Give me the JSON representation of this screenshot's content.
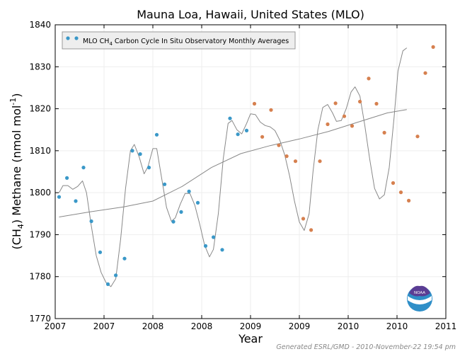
{
  "chart_data": {
    "type": "scatter",
    "title": "Mauna Loa, Hawaii, United States (MLO)",
    "xlabel": "Year",
    "ylabel": "(CH₄) Methane (nmol mol⁻¹)",
    "ylabel_parts": {
      "open": "(CH",
      "sub": "4",
      "close": ") Methane (nmol mol",
      "sup": "-1",
      "end": ")"
    },
    "xlim": [
      2007.0,
      2011.0
    ],
    "ylim": [
      1770,
      1840
    ],
    "xticks": [
      2007.0,
      2007.5,
      2008.0,
      2008.5,
      2009.0,
      2009.5,
      2010.0,
      2010.5,
      2011.0
    ],
    "xtick_labels": [
      "2007",
      "2007",
      "2008",
      "2008",
      "2009",
      "2009",
      "2010",
      "2010",
      "2011"
    ],
    "yticks": [
      1770,
      1780,
      1790,
      1800,
      1810,
      1820,
      1830,
      1840
    ],
    "grid": true,
    "legend": {
      "label_parts": {
        "pre": "MLO CH",
        "sub": "4",
        "post": " Carbon Cycle In Situ Observatory Monthly Averages"
      },
      "placement": "top-left"
    },
    "colors": {
      "early": "#3a98c8",
      "late": "#d6804f",
      "fit": "#888888",
      "trend": "#888888"
    },
    "series": [
      {
        "color_key": "early",
        "points": [
          [
            2007.04,
            1799.0
          ],
          [
            2007.12,
            1803.5
          ],
          [
            2007.21,
            1798.0
          ],
          [
            2007.29,
            1806.0
          ],
          [
            2007.37,
            1793.2
          ],
          [
            2007.46,
            1785.8
          ],
          [
            2007.54,
            1778.2
          ],
          [
            2007.62,
            1780.3
          ],
          [
            2007.71,
            1784.3
          ],
          [
            2007.79,
            1810.0
          ],
          [
            2007.87,
            1809.2
          ],
          [
            2007.96,
            1806.0
          ],
          [
            2008.04,
            1813.8
          ],
          [
            2008.12,
            1802.0
          ],
          [
            2008.21,
            1793.1
          ],
          [
            2008.29,
            1795.4
          ],
          [
            2008.37,
            1800.3
          ],
          [
            2008.46,
            1797.6
          ],
          [
            2008.54,
            1787.3
          ],
          [
            2008.62,
            1789.4
          ],
          [
            2008.71,
            1786.4
          ],
          [
            2008.79,
            1817.7
          ],
          [
            2008.87,
            1813.9
          ],
          [
            2008.96,
            1814.8
          ]
        ]
      },
      {
        "color_key": "late",
        "points": [
          [
            2009.04,
            1821.2
          ],
          [
            2009.12,
            1813.3
          ],
          [
            2009.21,
            1819.7
          ],
          [
            2009.29,
            1811.3
          ],
          [
            2009.37,
            1808.7
          ],
          [
            2009.46,
            1807.5
          ],
          [
            2009.54,
            1793.8
          ],
          [
            2009.62,
            1791.1
          ],
          [
            2009.71,
            1807.5
          ],
          [
            2009.79,
            1816.3
          ],
          [
            2009.87,
            1821.3
          ],
          [
            2009.96,
            1818.2
          ],
          [
            2010.04,
            1815.9
          ],
          [
            2010.12,
            1821.7
          ],
          [
            2010.21,
            1827.2
          ],
          [
            2010.29,
            1821.2
          ],
          [
            2010.37,
            1814.3
          ],
          [
            2010.46,
            1802.3
          ],
          [
            2010.54,
            1800.1
          ],
          [
            2010.62,
            1798.1
          ],
          [
            2010.71,
            1813.4
          ],
          [
            2010.79,
            1828.5
          ],
          [
            2010.87,
            1834.7
          ]
        ]
      }
    ],
    "fit_curve": [
      [
        2007.04,
        1800.0
      ],
      [
        2007.08,
        1801.7
      ],
      [
        2007.13,
        1801.7
      ],
      [
        2007.18,
        1800.8
      ],
      [
        2007.23,
        1801.5
      ],
      [
        2007.28,
        1802.8
      ],
      [
        2007.32,
        1800.0
      ],
      [
        2007.37,
        1792.0
      ],
      [
        2007.42,
        1785.0
      ],
      [
        2007.47,
        1781.0
      ],
      [
        2007.52,
        1778.6
      ],
      [
        2007.57,
        1777.6
      ],
      [
        2007.62,
        1779.5
      ],
      [
        2007.67,
        1789.0
      ],
      [
        2007.72,
        1801.0
      ],
      [
        2007.77,
        1810.0
      ],
      [
        2007.81,
        1811.5
      ],
      [
        2007.86,
        1808.5
      ],
      [
        2007.91,
        1804.5
      ],
      [
        2007.95,
        1806.2
      ],
      [
        2008.0,
        1810.5
      ],
      [
        2008.04,
        1810.5
      ],
      [
        2008.09,
        1803.5
      ],
      [
        2008.14,
        1796.5
      ],
      [
        2008.19,
        1793.2
      ],
      [
        2008.23,
        1794.0
      ],
      [
        2008.28,
        1797.2
      ],
      [
        2008.33,
        1799.8
      ],
      [
        2008.38,
        1799.8
      ],
      [
        2008.43,
        1797.0
      ],
      [
        2008.48,
        1792.5
      ],
      [
        2008.53,
        1787.5
      ],
      [
        2008.58,
        1784.7
      ],
      [
        2008.62,
        1786.5
      ],
      [
        2008.67,
        1795.0
      ],
      [
        2008.72,
        1808.0
      ],
      [
        2008.77,
        1816.5
      ],
      [
        2008.81,
        1817.2
      ],
      [
        2008.86,
        1815.0
      ],
      [
        2008.91,
        1814.0
      ],
      [
        2008.96,
        1816.5
      ],
      [
        2009.0,
        1818.8
      ],
      [
        2009.05,
        1818.6
      ],
      [
        2009.1,
        1816.8
      ],
      [
        2009.15,
        1816.0
      ],
      [
        2009.2,
        1815.7
      ],
      [
        2009.25,
        1814.8
      ],
      [
        2009.3,
        1812.5
      ],
      [
        2009.35,
        1809.0
      ],
      [
        2009.4,
        1804.0
      ],
      [
        2009.45,
        1798.0
      ],
      [
        2009.5,
        1793.0
      ],
      [
        2009.55,
        1791.0
      ],
      [
        2009.6,
        1795.0
      ],
      [
        2009.64,
        1805.0
      ],
      [
        2009.69,
        1815.0
      ],
      [
        2009.74,
        1820.3
      ],
      [
        2009.79,
        1821.0
      ],
      [
        2009.84,
        1819.0
      ],
      [
        2009.88,
        1817.0
      ],
      [
        2009.93,
        1817.2
      ],
      [
        2009.98,
        1820.0
      ],
      [
        2010.03,
        1824.0
      ],
      [
        2010.07,
        1825.2
      ],
      [
        2010.12,
        1823.0
      ],
      [
        2010.17,
        1816.0
      ],
      [
        2010.22,
        1808.0
      ],
      [
        2010.27,
        1801.0
      ],
      [
        2010.32,
        1798.5
      ],
      [
        2010.37,
        1799.5
      ],
      [
        2010.42,
        1806.0
      ],
      [
        2010.47,
        1818.0
      ],
      [
        2010.51,
        1829.0
      ],
      [
        2010.56,
        1833.8
      ],
      [
        2010.6,
        1834.5
      ]
    ],
    "trend_curve": [
      [
        2007.04,
        1794.2
      ],
      [
        2007.35,
        1795.4
      ],
      [
        2007.7,
        1796.6
      ],
      [
        2008.0,
        1798.0
      ],
      [
        2008.3,
        1801.5
      ],
      [
        2008.6,
        1806.0
      ],
      [
        2008.9,
        1809.3
      ],
      [
        2009.2,
        1811.2
      ],
      [
        2009.5,
        1812.8
      ],
      [
        2009.8,
        1814.6
      ],
      [
        2010.1,
        1816.8
      ],
      [
        2010.4,
        1819.0
      ],
      [
        2010.6,
        1819.8
      ]
    ]
  },
  "footer": {
    "generated": "Generated ESRL/GMD - 2010-November-22 19:54 pm"
  },
  "logo": {
    "text": "NOAA"
  }
}
